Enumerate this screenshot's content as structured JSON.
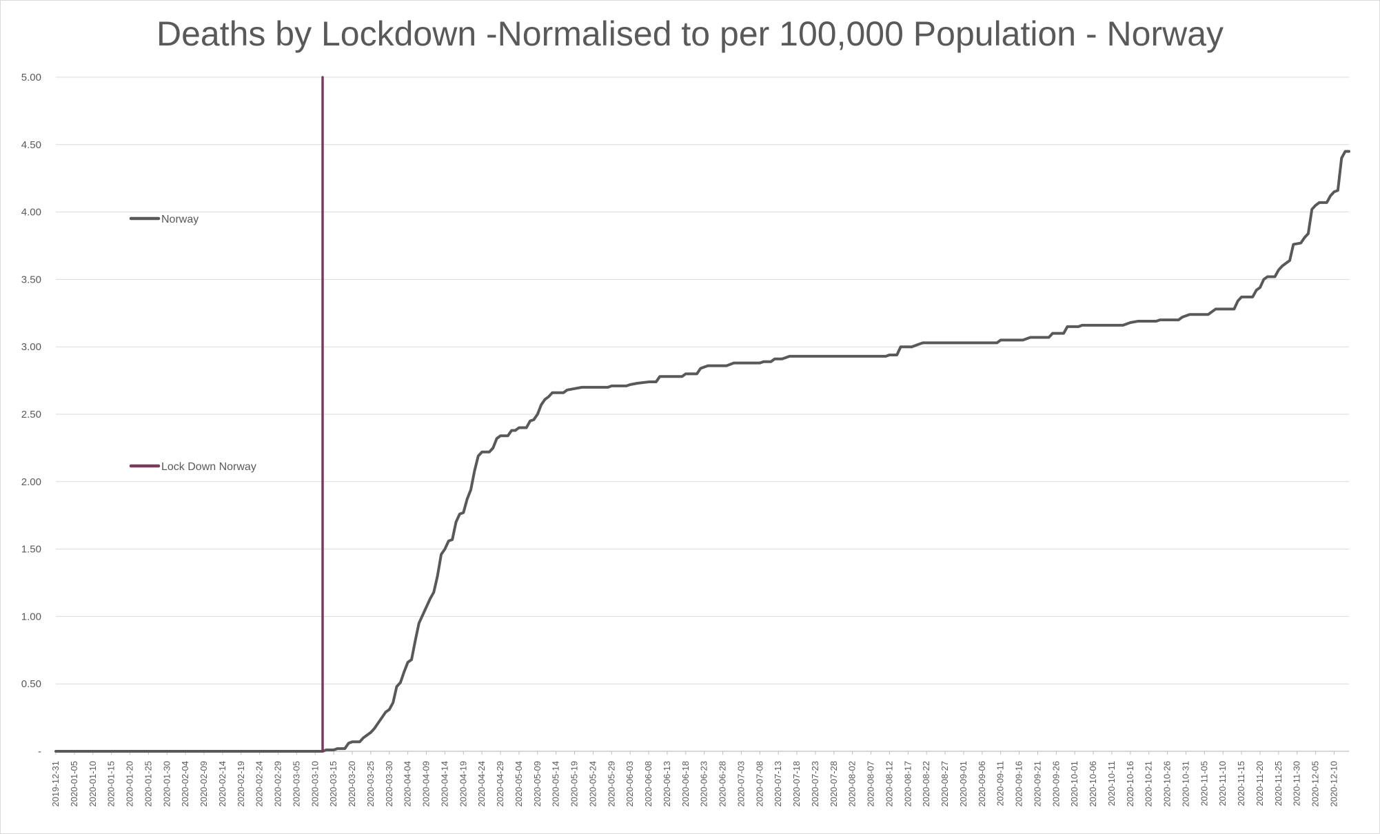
{
  "chart_data": {
    "type": "line",
    "title": "Deaths by Lockdown -Normalised to per 100,000 Population - Norway",
    "xlabel": "",
    "ylabel": "",
    "x_start": "2019-12-31",
    "x_end": "2020-12-14",
    "x_tick_labels": [
      "2019-12-31",
      "2020-01-05",
      "2020-01-10",
      "2020-01-15",
      "2020-01-20",
      "2020-01-25",
      "2020-01-30",
      "2020-02-04",
      "2020-02-09",
      "2020-02-14",
      "2020-02-19",
      "2020-02-24",
      "2020-02-29",
      "2020-03-05",
      "2020-03-10",
      "2020-03-15",
      "2020-03-20",
      "2020-03-25",
      "2020-03-30",
      "2020-04-04",
      "2020-04-09",
      "2020-04-14",
      "2020-04-19",
      "2020-04-24",
      "2020-04-29",
      "2020-05-04",
      "2020-05-09",
      "2020-05-14",
      "2020-05-19",
      "2020-05-24",
      "2020-05-29",
      "2020-06-03",
      "2020-06-08",
      "2020-06-13",
      "2020-06-18",
      "2020-06-23",
      "2020-06-28",
      "2020-07-03",
      "2020-07-08",
      "2020-07-13",
      "2020-07-18",
      "2020-07-23",
      "2020-07-28",
      "2020-08-02",
      "2020-08-07",
      "2020-08-12",
      "2020-08-17",
      "2020-08-22",
      "2020-08-27",
      "2020-09-01",
      "2020-09-06",
      "2020-09-11",
      "2020-09-16",
      "2020-09-21",
      "2020-09-26",
      "2020-10-01",
      "2020-10-06",
      "2020-10-11",
      "2020-10-16",
      "2020-10-21",
      "2020-10-26",
      "2020-10-31",
      "2020-11-05",
      "2020-11-10",
      "2020-11-15",
      "2020-11-20",
      "2020-11-25",
      "2020-11-30",
      "2020-12-05",
      "2020-12-10"
    ],
    "y_tick_labels": [
      "-",
      "0.50",
      "1.00",
      "1.50",
      "2.00",
      "2.50",
      "3.00",
      "3.50",
      "4.00",
      "4.50",
      "5.00"
    ],
    "ylim": [
      0,
      5
    ],
    "grid": true,
    "series": [
      {
        "name": "Norway",
        "color": "#595959",
        "points": [
          [
            "2019-12-31",
            0
          ],
          [
            "2020-03-12",
            0
          ],
          [
            "2020-03-13",
            0.01
          ],
          [
            "2020-03-15",
            0.01
          ],
          [
            "2020-03-16",
            0.02
          ],
          [
            "2020-03-18",
            0.02
          ],
          [
            "2020-03-19",
            0.06
          ],
          [
            "2020-03-20",
            0.07
          ],
          [
            "2020-03-22",
            0.07
          ],
          [
            "2020-03-23",
            0.1
          ],
          [
            "2020-03-24",
            0.12
          ],
          [
            "2020-03-25",
            0.14
          ],
          [
            "2020-03-26",
            0.17
          ],
          [
            "2020-03-27",
            0.21
          ],
          [
            "2020-03-28",
            0.25
          ],
          [
            "2020-03-29",
            0.29
          ],
          [
            "2020-03-30",
            0.31
          ],
          [
            "2020-03-31",
            0.36
          ],
          [
            "2020-04-01",
            0.48
          ],
          [
            "2020-04-02",
            0.51
          ],
          [
            "2020-04-03",
            0.59
          ],
          [
            "2020-04-04",
            0.66
          ],
          [
            "2020-04-05",
            0.68
          ],
          [
            "2020-04-06",
            0.82
          ],
          [
            "2020-04-07",
            0.95
          ],
          [
            "2020-04-08",
            1.01
          ],
          [
            "2020-04-09",
            1.07
          ],
          [
            "2020-04-10",
            1.13
          ],
          [
            "2020-04-11",
            1.18
          ],
          [
            "2020-04-12",
            1.3
          ],
          [
            "2020-04-13",
            1.46
          ],
          [
            "2020-04-14",
            1.5
          ],
          [
            "2020-04-15",
            1.56
          ],
          [
            "2020-04-16",
            1.57
          ],
          [
            "2020-04-17",
            1.7
          ],
          [
            "2020-04-18",
            1.76
          ],
          [
            "2020-04-19",
            1.77
          ],
          [
            "2020-04-20",
            1.87
          ],
          [
            "2020-04-21",
            1.94
          ],
          [
            "2020-04-22",
            2.08
          ],
          [
            "2020-04-23",
            2.19
          ],
          [
            "2020-04-24",
            2.22
          ],
          [
            "2020-04-26",
            2.22
          ],
          [
            "2020-04-27",
            2.25
          ],
          [
            "2020-04-28",
            2.32
          ],
          [
            "2020-04-29",
            2.34
          ],
          [
            "2020-05-01",
            2.34
          ],
          [
            "2020-05-02",
            2.38
          ],
          [
            "2020-05-03",
            2.38
          ],
          [
            "2020-05-04",
            2.4
          ],
          [
            "2020-05-06",
            2.4
          ],
          [
            "2020-05-07",
            2.45
          ],
          [
            "2020-05-08",
            2.46
          ],
          [
            "2020-05-09",
            2.5
          ],
          [
            "2020-05-10",
            2.57
          ],
          [
            "2020-05-11",
            2.61
          ],
          [
            "2020-05-12",
            2.63
          ],
          [
            "2020-05-13",
            2.66
          ],
          [
            "2020-05-16",
            2.66
          ],
          [
            "2020-05-17",
            2.68
          ],
          [
            "2020-05-19",
            2.69
          ],
          [
            "2020-05-21",
            2.7
          ],
          [
            "2020-05-28",
            2.7
          ],
          [
            "2020-05-29",
            2.71
          ],
          [
            "2020-06-02",
            2.71
          ],
          [
            "2020-06-03",
            2.72
          ],
          [
            "2020-06-05",
            2.73
          ],
          [
            "2020-06-08",
            2.74
          ],
          [
            "2020-06-10",
            2.74
          ],
          [
            "2020-06-11",
            2.78
          ],
          [
            "2020-06-17",
            2.78
          ],
          [
            "2020-06-18",
            2.8
          ],
          [
            "2020-06-21",
            2.8
          ],
          [
            "2020-06-22",
            2.84
          ],
          [
            "2020-06-23",
            2.85
          ],
          [
            "2020-06-24",
            2.86
          ],
          [
            "2020-06-29",
            2.86
          ],
          [
            "2020-07-01",
            2.88
          ],
          [
            "2020-07-08",
            2.88
          ],
          [
            "2020-07-09",
            2.89
          ],
          [
            "2020-07-11",
            2.89
          ],
          [
            "2020-07-12",
            2.91
          ],
          [
            "2020-07-14",
            2.91
          ],
          [
            "2020-07-16",
            2.93
          ],
          [
            "2020-08-11",
            2.93
          ],
          [
            "2020-08-12",
            2.94
          ],
          [
            "2020-08-14",
            2.94
          ],
          [
            "2020-08-15",
            3
          ],
          [
            "2020-08-18",
            3
          ],
          [
            "2020-08-19",
            3.01
          ],
          [
            "2020-08-20",
            3.02
          ],
          [
            "2020-08-21",
            3.03
          ],
          [
            "2020-09-10",
            3.03
          ],
          [
            "2020-09-11",
            3.05
          ],
          [
            "2020-09-17",
            3.05
          ],
          [
            "2020-09-19",
            3.07
          ],
          [
            "2020-09-24",
            3.07
          ],
          [
            "2020-09-25",
            3.1
          ],
          [
            "2020-09-28",
            3.1
          ],
          [
            "2020-09-29",
            3.15
          ],
          [
            "2020-10-02",
            3.15
          ],
          [
            "2020-10-03",
            3.16
          ],
          [
            "2020-10-14",
            3.16
          ],
          [
            "2020-10-16",
            3.18
          ],
          [
            "2020-10-18",
            3.19
          ],
          [
            "2020-10-23",
            3.19
          ],
          [
            "2020-10-24",
            3.2
          ],
          [
            "2020-10-29",
            3.2
          ],
          [
            "2020-10-30",
            3.22
          ],
          [
            "2020-11-01",
            3.24
          ],
          [
            "2020-11-06",
            3.24
          ],
          [
            "2020-11-08",
            3.28
          ],
          [
            "2020-11-13",
            3.28
          ],
          [
            "2020-11-14",
            3.34
          ],
          [
            "2020-11-15",
            3.37
          ],
          [
            "2020-11-18",
            3.37
          ],
          [
            "2020-11-19",
            3.42
          ],
          [
            "2020-11-20",
            3.44
          ],
          [
            "2020-11-21",
            3.5
          ],
          [
            "2020-11-22",
            3.52
          ],
          [
            "2020-11-24",
            3.52
          ],
          [
            "2020-11-25",
            3.57
          ],
          [
            "2020-11-26",
            3.6
          ],
          [
            "2020-11-27",
            3.62
          ],
          [
            "2020-11-28",
            3.64
          ],
          [
            "2020-11-29",
            3.76
          ],
          [
            "2020-12-01",
            3.77
          ],
          [
            "2020-12-02",
            3.81
          ],
          [
            "2020-12-03",
            3.84
          ],
          [
            "2020-12-04",
            4.02
          ],
          [
            "2020-12-05",
            4.05
          ],
          [
            "2020-12-06",
            4.07
          ],
          [
            "2020-12-08",
            4.07
          ],
          [
            "2020-12-09",
            4.12
          ],
          [
            "2020-12-10",
            4.15
          ],
          [
            "2020-12-11",
            4.16
          ],
          [
            "2020-12-12",
            4.4
          ],
          [
            "2020-12-13",
            4.45
          ],
          [
            "2020-12-14",
            4.45
          ]
        ]
      },
      {
        "name": "Lock Down Norway",
        "color": "#7a3a5e",
        "points": [
          [
            "2020-03-12",
            0
          ],
          [
            "2020-03-12",
            5
          ]
        ]
      }
    ],
    "legend": {
      "position": "left",
      "entries": [
        "Norway",
        "Lock Down Norway"
      ]
    }
  }
}
